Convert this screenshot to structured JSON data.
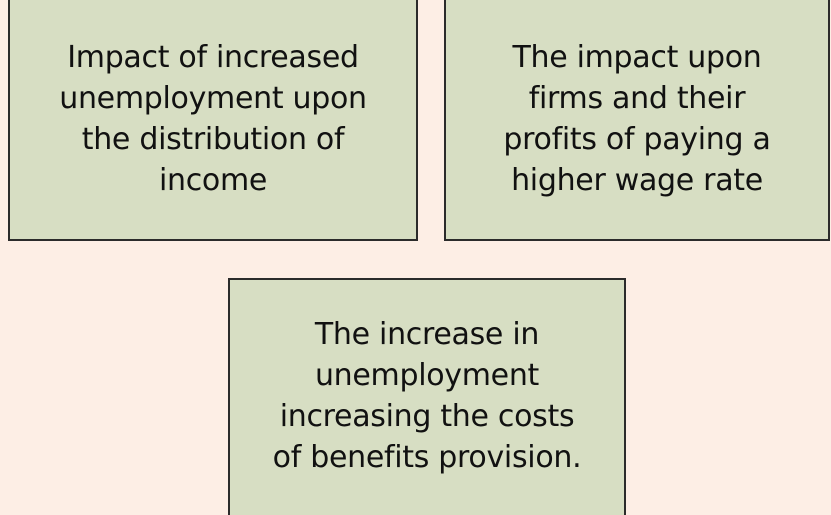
{
  "boxes": [
    {
      "lines": [
        "Impact of increased",
        "unemployment upon",
        "the distribution of",
        "income"
      ]
    },
    {
      "lines": [
        "The impact upon",
        "firms and their",
        "profits of paying a",
        "higher wage rate"
      ]
    },
    {
      "lines": [
        "The increase in",
        "unemployment",
        "increasing the costs",
        "of benefits provision."
      ]
    }
  ]
}
